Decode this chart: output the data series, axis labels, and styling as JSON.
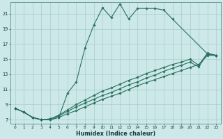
{
  "xlabel": "Humidex (Indice chaleur)",
  "bg_color": "#cce8e8",
  "grid_color": "#aacccc",
  "line_color": "#2a7060",
  "xlim": [
    -0.5,
    23.5
  ],
  "ylim": [
    6.5,
    22.5
  ],
  "xticks": [
    0,
    1,
    2,
    3,
    4,
    5,
    6,
    7,
    8,
    9,
    10,
    11,
    12,
    13,
    14,
    15,
    16,
    17,
    18,
    19,
    20,
    21,
    22,
    23
  ],
  "yticks": [
    7,
    9,
    11,
    13,
    15,
    17,
    19,
    21
  ],
  "lines": [
    {
      "x": [
        0,
        1,
        2,
        3,
        4,
        5,
        6,
        7,
        8,
        9,
        10,
        11,
        12,
        13,
        14,
        15,
        16,
        17,
        18,
        22,
        23
      ],
      "y": [
        8.5,
        8.0,
        7.3,
        7.0,
        7.0,
        7.3,
        10.5,
        12.0,
        16.5,
        19.5,
        21.8,
        20.5,
        22.3,
        20.3,
        21.7,
        21.7,
        21.7,
        21.5,
        20.3,
        15.7,
        15.5
      ]
    },
    {
      "x": [
        0,
        1,
        2,
        3,
        4,
        5,
        6,
        7,
        8,
        9,
        10,
        11,
        12,
        13,
        14,
        15,
        16,
        17,
        18,
        19,
        20,
        21,
        22,
        23
      ],
      "y": [
        8.5,
        8.0,
        7.3,
        7.0,
        7.0,
        7.3,
        7.8,
        8.2,
        8.7,
        9.2,
        9.7,
        10.1,
        10.5,
        11.0,
        11.5,
        11.9,
        12.3,
        12.7,
        13.1,
        13.5,
        13.9,
        14.3,
        15.5,
        15.5
      ]
    },
    {
      "x": [
        0,
        1,
        2,
        3,
        4,
        5,
        6,
        7,
        8,
        9,
        10,
        11,
        12,
        13,
        14,
        15,
        16,
        17,
        18,
        19,
        20,
        21,
        22,
        23
      ],
      "y": [
        8.5,
        8.0,
        7.3,
        7.0,
        7.1,
        7.5,
        8.1,
        8.7,
        9.2,
        9.7,
        10.2,
        10.6,
        11.1,
        11.6,
        12.0,
        12.5,
        12.9,
        13.4,
        13.8,
        14.2,
        14.6,
        14.0,
        15.7,
        15.5
      ]
    },
    {
      "x": [
        0,
        1,
        2,
        3,
        4,
        5,
        6,
        7,
        8,
        9,
        10,
        11,
        12,
        13,
        14,
        15,
        16,
        17,
        18,
        19,
        20,
        21,
        22,
        23
      ],
      "y": [
        8.5,
        8.0,
        7.3,
        7.0,
        7.1,
        7.6,
        8.3,
        9.0,
        9.6,
        10.2,
        10.8,
        11.2,
        11.7,
        12.2,
        12.6,
        13.1,
        13.5,
        13.9,
        14.3,
        14.6,
        15.0,
        14.2,
        15.8,
        15.5
      ]
    }
  ]
}
